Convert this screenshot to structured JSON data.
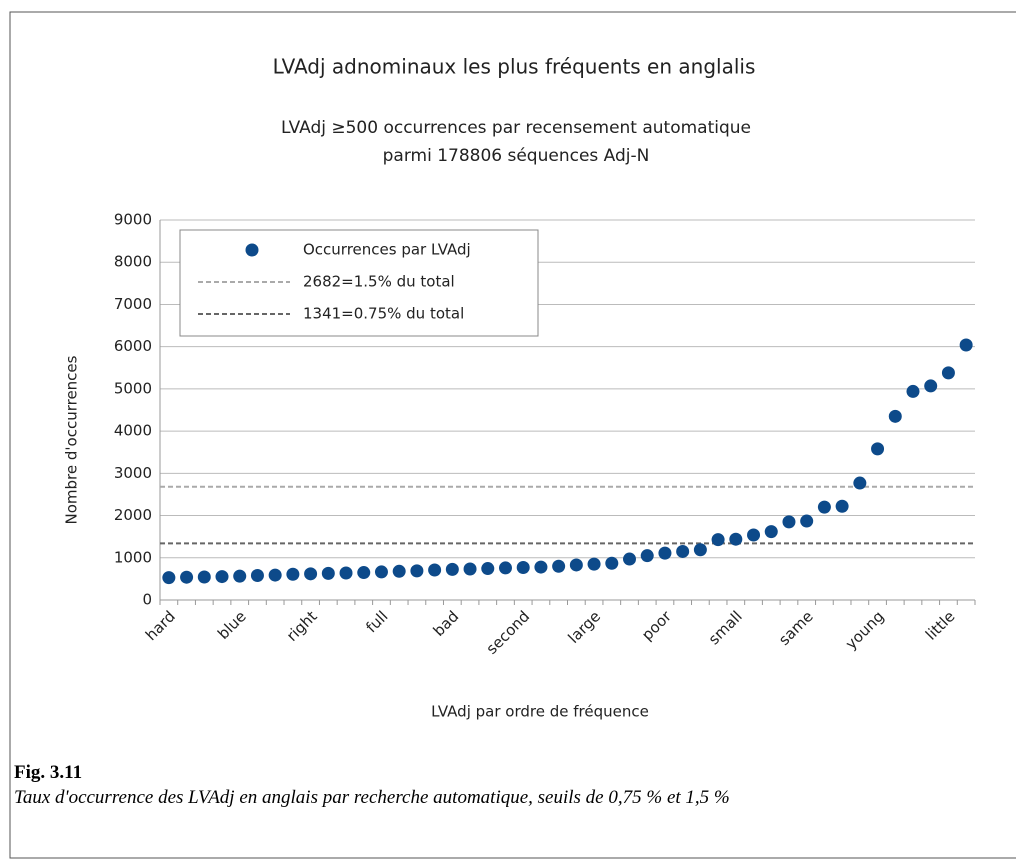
{
  "chart_data": {
    "type": "scatter",
    "title": "LVAdj adnominaux les plus fréquents en anglalis",
    "subtitle": [
      "LVAdj ≥500 occurrences par recensement automatique",
      "parmi 178806 séquences Adj-N"
    ],
    "x_label": "LVAdj par ordre de fréquence",
    "y_label": "Nombre d'occurrences",
    "categories": [
      "hard",
      null,
      null,
      null,
      "blue",
      null,
      null,
      null,
      "right",
      null,
      null,
      null,
      "full",
      null,
      null,
      null,
      "bad",
      null,
      null,
      null,
      "second",
      null,
      null,
      null,
      "large",
      null,
      null,
      null,
      "poor",
      null,
      null,
      null,
      "small",
      null,
      null,
      null,
      "same",
      null,
      null,
      null,
      "young",
      null,
      null,
      null,
      "little",
      null
    ],
    "series": [
      {
        "name": "Occurrences par LVAdj",
        "color": "#0d4a8a",
        "values": [
          530,
          540,
          545,
          555,
          565,
          580,
          590,
          610,
          620,
          630,
          640,
          650,
          665,
          680,
          690,
          710,
          725,
          735,
          745,
          760,
          770,
          780,
          800,
          830,
          850,
          870,
          970,
          1050,
          1110,
          1150,
          1190,
          1430,
          1440,
          1540,
          1620,
          1850,
          1870,
          2200,
          2220,
          2770,
          3580,
          4350,
          4940,
          5070,
          5380,
          6040
        ]
      }
    ],
    "reference_lines": [
      {
        "name": "2682=1.5% du total",
        "value": 2682,
        "color": "#aaaaaa"
      },
      {
        "name": "1341=0.75% du total",
        "value": 1341,
        "color": "#666666"
      }
    ],
    "ylim": [
      0,
      9000
    ],
    "yticks": [
      0,
      1000,
      2000,
      3000,
      4000,
      5000,
      6000,
      7000,
      8000,
      9000
    ],
    "grid": true,
    "legend": "top-left"
  },
  "caption": {
    "label": "Fig. 3.11",
    "text": "Taux d'occurrence des LVAdj en anglais par recherche automatique, seuils de 0,75 % et 1,5 %"
  }
}
